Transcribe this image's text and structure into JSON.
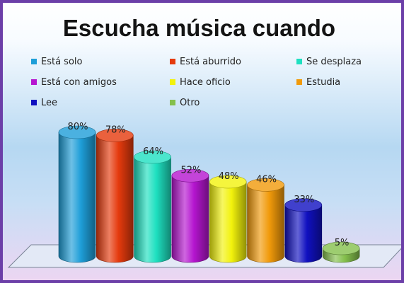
{
  "chart_data": {
    "type": "bar",
    "title": "Escucha música cuando",
    "categories": [
      "Está solo",
      "Está aburrido",
      "Se desplaza",
      "Está con amigos",
      "Hace oficio",
      "Estudia",
      "Lee",
      "Otro"
    ],
    "values": [
      80,
      78,
      64,
      52,
      48,
      46,
      33,
      5
    ],
    "data_labels": [
      "80%",
      "78%",
      "64%",
      "52%",
      "48%",
      "46%",
      "33%",
      "5%"
    ],
    "colors": [
      "#1e9ed8",
      "#e53a0d",
      "#1ee0c0",
      "#b515d0",
      "#f2f20c",
      "#f19a0a",
      "#1010c0",
      "#84c04c"
    ],
    "ylim": [
      0,
      80
    ],
    "legend_position": "top",
    "grid": false,
    "style": "3d-cylinder"
  }
}
